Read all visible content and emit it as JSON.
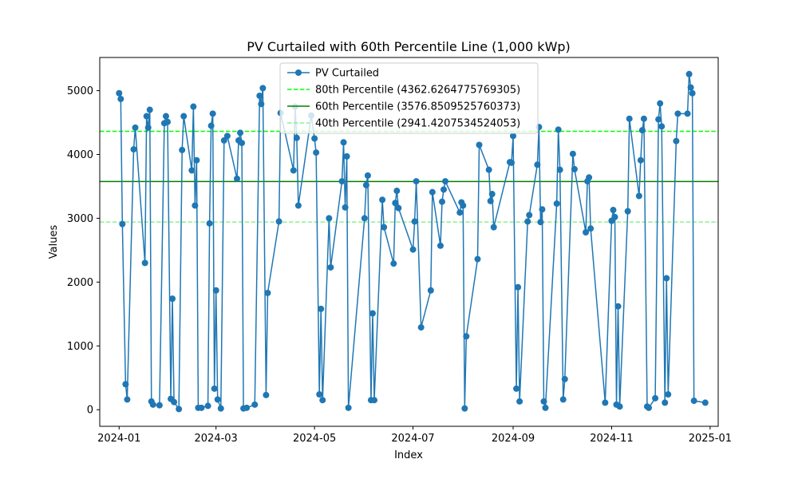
{
  "chart_data": {
    "type": "line",
    "title": "PV Curtailed with 60th Percentile Line (1,000 kWp)",
    "xlabel": "Index",
    "ylabel": "Values",
    "xlim": [
      "2023-12-20",
      "2025-01-06"
    ],
    "ylim": [
      -260,
      5520
    ],
    "grid": false,
    "legend_placement": "upper-center",
    "x_ticks": [
      "2024-01",
      "2024-03",
      "2024-05",
      "2024-07",
      "2024-09",
      "2024-11",
      "2025-01"
    ],
    "y_ticks": [
      0,
      1000,
      2000,
      3000,
      4000,
      5000
    ],
    "series": [
      {
        "name": "PV Curtailed",
        "color": "#1f77b4",
        "marker": "circle",
        "points": [
          [
            "2024-01-01",
            4960
          ],
          [
            "2024-01-02",
            4870
          ],
          [
            "2024-01-03",
            2910
          ],
          [
            "2024-01-05",
            400
          ],
          [
            "2024-01-06",
            160
          ],
          [
            "2024-01-10",
            4080
          ],
          [
            "2024-01-11",
            4420
          ],
          [
            "2024-01-17",
            2300
          ],
          [
            "2024-01-18",
            4600
          ],
          [
            "2024-01-19",
            4420
          ],
          [
            "2024-01-20",
            4700
          ],
          [
            "2024-01-21",
            130
          ],
          [
            "2024-01-22",
            80
          ],
          [
            "2024-01-26",
            70
          ],
          [
            "2024-01-29",
            4490
          ],
          [
            "2024-01-30",
            4600
          ],
          [
            "2024-01-31",
            4510
          ],
          [
            "2024-02-02",
            170
          ],
          [
            "2024-02-03",
            1740
          ],
          [
            "2024-02-04",
            120
          ],
          [
            "2024-02-07",
            10
          ],
          [
            "2024-02-09",
            4070
          ],
          [
            "2024-02-10",
            4600
          ],
          [
            "2024-02-15",
            3750
          ],
          [
            "2024-02-16",
            4750
          ],
          [
            "2024-02-17",
            3200
          ],
          [
            "2024-02-18",
            3910
          ],
          [
            "2024-02-19",
            30
          ],
          [
            "2024-02-21",
            30
          ],
          [
            "2024-02-25",
            60
          ],
          [
            "2024-02-26",
            2920
          ],
          [
            "2024-02-27",
            4450
          ],
          [
            "2024-02-28",
            4640
          ],
          [
            "2024-02-29",
            330
          ],
          [
            "2024-03-01",
            1870
          ],
          [
            "2024-03-02",
            160
          ],
          [
            "2024-03-04",
            20
          ],
          [
            "2024-03-06",
            4220
          ],
          [
            "2024-03-08",
            4290
          ],
          [
            "2024-03-14",
            3620
          ],
          [
            "2024-03-15",
            4220
          ],
          [
            "2024-03-16",
            4340
          ],
          [
            "2024-03-17",
            4180
          ],
          [
            "2024-03-18",
            20
          ],
          [
            "2024-03-20",
            30
          ],
          [
            "2024-03-25",
            80
          ],
          [
            "2024-03-28",
            4920
          ],
          [
            "2024-03-29",
            4790
          ],
          [
            "2024-03-30",
            5040
          ],
          [
            "2024-04-01",
            230
          ],
          [
            "2024-04-02",
            1830
          ],
          [
            "2024-04-09",
            2950
          ],
          [
            "2024-04-10",
            4650
          ],
          [
            "2024-04-18",
            3750
          ],
          [
            "2024-04-19",
            4750
          ],
          [
            "2024-04-20",
            4260
          ],
          [
            "2024-04-21",
            3200
          ],
          [
            "2024-04-29",
            4610
          ],
          [
            "2024-05-01",
            4250
          ],
          [
            "2024-05-02",
            4030
          ],
          [
            "2024-05-04",
            240
          ],
          [
            "2024-05-05",
            1580
          ],
          [
            "2024-05-06",
            150
          ],
          [
            "2024-05-10",
            3000
          ],
          [
            "2024-05-11",
            2230
          ],
          [
            "2024-05-18",
            3580
          ],
          [
            "2024-05-19",
            4190
          ],
          [
            "2024-05-20",
            3170
          ],
          [
            "2024-05-21",
            3970
          ],
          [
            "2024-05-22",
            30
          ],
          [
            "2024-06-01",
            3000
          ],
          [
            "2024-06-02",
            3520
          ],
          [
            "2024-06-03",
            3670
          ],
          [
            "2024-06-05",
            150
          ],
          [
            "2024-06-06",
            1510
          ],
          [
            "2024-06-07",
            150
          ],
          [
            "2024-06-12",
            3290
          ],
          [
            "2024-06-13",
            2860
          ],
          [
            "2024-06-19",
            2290
          ],
          [
            "2024-06-20",
            3240
          ],
          [
            "2024-06-21",
            3430
          ],
          [
            "2024-06-22",
            3160
          ],
          [
            "2024-07-01",
            2510
          ],
          [
            "2024-07-02",
            2950
          ],
          [
            "2024-07-03",
            3580
          ],
          [
            "2024-07-06",
            1290
          ],
          [
            "2024-07-12",
            1870
          ],
          [
            "2024-07-13",
            3410
          ],
          [
            "2024-07-18",
            2570
          ],
          [
            "2024-07-19",
            3260
          ],
          [
            "2024-07-20",
            3450
          ],
          [
            "2024-07-21",
            3580
          ],
          [
            "2024-07-30",
            3090
          ],
          [
            "2024-07-31",
            3250
          ],
          [
            "2024-08-01",
            3200
          ],
          [
            "2024-08-02",
            20
          ],
          [
            "2024-08-03",
            1150
          ],
          [
            "2024-08-10",
            2360
          ],
          [
            "2024-08-11",
            4150
          ],
          [
            "2024-08-17",
            3760
          ],
          [
            "2024-08-18",
            3270
          ],
          [
            "2024-08-19",
            3380
          ],
          [
            "2024-08-20",
            2860
          ],
          [
            "2024-08-30",
            3880
          ],
          [
            "2024-08-31",
            3870
          ],
          [
            "2024-09-01",
            4290
          ],
          [
            "2024-09-03",
            330
          ],
          [
            "2024-09-04",
            1920
          ],
          [
            "2024-09-05",
            130
          ],
          [
            "2024-09-10",
            2950
          ],
          [
            "2024-09-11",
            3050
          ],
          [
            "2024-09-16",
            3840
          ],
          [
            "2024-09-17",
            4430
          ],
          [
            "2024-09-18",
            2940
          ],
          [
            "2024-09-19",
            3140
          ],
          [
            "2024-09-20",
            130
          ],
          [
            "2024-09-21",
            30
          ],
          [
            "2024-09-28",
            3230
          ],
          [
            "2024-09-29",
            4390
          ],
          [
            "2024-09-30",
            3760
          ],
          [
            "2024-10-02",
            160
          ],
          [
            "2024-10-03",
            480
          ],
          [
            "2024-10-08",
            4010
          ],
          [
            "2024-10-09",
            3770
          ],
          [
            "2024-10-16",
            2780
          ],
          [
            "2024-10-17",
            3580
          ],
          [
            "2024-10-18",
            3640
          ],
          [
            "2024-10-19",
            2840
          ],
          [
            "2024-10-28",
            110
          ],
          [
            "2024-11-01",
            2960
          ],
          [
            "2024-11-02",
            3130
          ],
          [
            "2024-11-03",
            3020
          ],
          [
            "2024-11-04",
            80
          ],
          [
            "2024-11-05",
            1620
          ],
          [
            "2024-11-06",
            50
          ],
          [
            "2024-11-11",
            3110
          ],
          [
            "2024-11-12",
            4560
          ],
          [
            "2024-11-18",
            3350
          ],
          [
            "2024-11-19",
            3910
          ],
          [
            "2024-11-20",
            4380
          ],
          [
            "2024-11-21",
            4560
          ],
          [
            "2024-11-23",
            50
          ],
          [
            "2024-11-24",
            30
          ],
          [
            "2024-11-28",
            180
          ],
          [
            "2024-11-30",
            4550
          ],
          [
            "2024-12-01",
            4800
          ],
          [
            "2024-12-02",
            4440
          ],
          [
            "2024-12-04",
            110
          ],
          [
            "2024-12-05",
            2060
          ],
          [
            "2024-12-06",
            240
          ],
          [
            "2024-12-11",
            4210
          ],
          [
            "2024-12-12",
            4640
          ],
          [
            "2024-12-18",
            4640
          ],
          [
            "2024-12-19",
            5260
          ],
          [
            "2024-12-20",
            5050
          ],
          [
            "2024-12-21",
            4960
          ],
          [
            "2024-12-22",
            140
          ],
          [
            "2024-12-29",
            110
          ]
        ]
      },
      {
        "name": "80th Percentile (4362.6264775769305)",
        "value": 4362.6264775769305,
        "color": "#00ff00",
        "style": "dashed"
      },
      {
        "name": "60th Percentile (3576.8509525760373)",
        "value": 3576.8509525760373,
        "color": "#008000",
        "style": "solid"
      },
      {
        "name": "40th Percentile (2941.4207534524053)",
        "value": 2941.4207534524053,
        "color": "#90ee90",
        "style": "dashed"
      }
    ]
  }
}
